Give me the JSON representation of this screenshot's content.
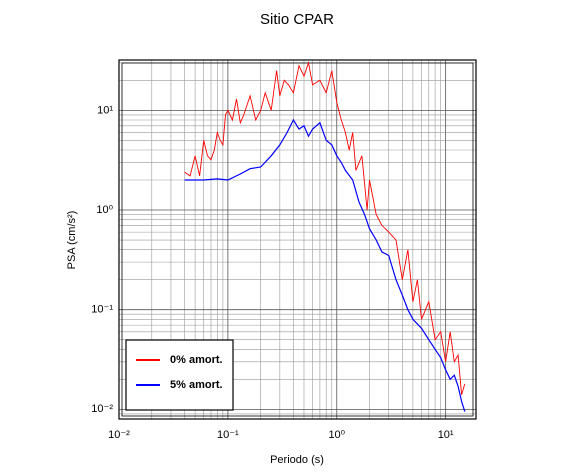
{
  "chart_data": {
    "type": "line",
    "title": "Sitio CPAR",
    "xlabel": "Periodo (s)",
    "ylabel": "PSA (cm/s²)",
    "xscale": "log",
    "yscale": "log",
    "grid": true,
    "legend": "lower left",
    "xlim": [
      0.01,
      19
    ],
    "ylim": [
      0.008,
      32
    ],
    "xticks": [
      {
        "value": 0.01,
        "label": "10⁻²"
      },
      {
        "value": 0.1,
        "label": "10⁻¹"
      },
      {
        "value": 1,
        "label": "10⁰"
      },
      {
        "value": 10,
        "label": "10¹"
      }
    ],
    "yticks": [
      {
        "value": 0.01,
        "label": "10⁻²"
      },
      {
        "value": 0.1,
        "label": "10⁻¹"
      },
      {
        "value": 1,
        "label": "10⁰"
      },
      {
        "value": 10,
        "label": "10¹"
      }
    ],
    "series": [
      {
        "name": "0% amort.",
        "color": "#ff0000",
        "x": [
          0.04,
          0.045,
          0.05,
          0.055,
          0.06,
          0.065,
          0.07,
          0.075,
          0.08,
          0.085,
          0.09,
          0.095,
          0.1,
          0.11,
          0.12,
          0.13,
          0.14,
          0.16,
          0.18,
          0.2,
          0.22,
          0.25,
          0.28,
          0.3,
          0.33,
          0.36,
          0.4,
          0.45,
          0.5,
          0.55,
          0.6,
          0.7,
          0.8,
          0.9,
          1.0,
          1.1,
          1.2,
          1.3,
          1.4,
          1.5,
          1.7,
          1.9,
          2.0,
          2.3,
          2.6,
          3,
          3.5,
          4,
          4.5,
          5,
          5.5,
          6,
          7,
          8,
          9,
          10,
          11,
          12,
          13,
          14,
          15
        ],
        "values": [
          2.4,
          2.2,
          3.5,
          2.2,
          5,
          3.5,
          3.2,
          4,
          6,
          5,
          4.5,
          9,
          10,
          8,
          13,
          7.5,
          9,
          14,
          8,
          10,
          15,
          10,
          25,
          14,
          20,
          18,
          15,
          28,
          22,
          30,
          18,
          20,
          15,
          25,
          12,
          8,
          6,
          4,
          6,
          2.5,
          3.5,
          1,
          2,
          0.9,
          0.7,
          0.6,
          0.5,
          0.2,
          0.4,
          0.12,
          0.2,
          0.08,
          0.12,
          0.05,
          0.06,
          0.03,
          0.06,
          0.03,
          0.035,
          0.014,
          0.018
        ]
      },
      {
        "name": "5% amort.",
        "color": "#0000ff",
        "x": [
          0.04,
          0.06,
          0.08,
          0.1,
          0.13,
          0.16,
          0.2,
          0.25,
          0.3,
          0.35,
          0.4,
          0.45,
          0.5,
          0.55,
          0.6,
          0.7,
          0.8,
          0.9,
          1.0,
          1.1,
          1.2,
          1.4,
          1.6,
          1.8,
          2.0,
          2.3,
          2.6,
          3,
          3.5,
          4,
          4.5,
          5,
          6,
          7,
          8,
          9,
          10,
          11,
          12,
          13,
          14,
          15
        ],
        "values": [
          2.0,
          2.0,
          2.05,
          2.0,
          2.3,
          2.6,
          2.7,
          3.5,
          4.5,
          6,
          8,
          6.5,
          7,
          5.5,
          6.5,
          7.5,
          5,
          4.5,
          3.5,
          3,
          2.5,
          2.0,
          1.2,
          0.9,
          0.65,
          0.5,
          0.38,
          0.35,
          0.2,
          0.14,
          0.1,
          0.08,
          0.065,
          0.05,
          0.04,
          0.033,
          0.025,
          0.02,
          0.022,
          0.017,
          0.012,
          0.0095
        ]
      }
    ]
  }
}
